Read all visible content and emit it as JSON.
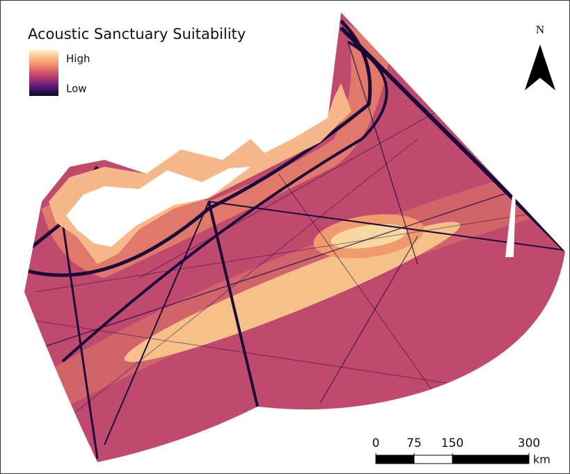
{
  "title": "Acoustic Sanctuary Suitability",
  "legend": {
    "high": "High",
    "low": "Low"
  },
  "north_arrow": {
    "label": "N"
  },
  "scale_bar": {
    "ticks": [
      0,
      75,
      150,
      300
    ],
    "unit": "km"
  }
}
